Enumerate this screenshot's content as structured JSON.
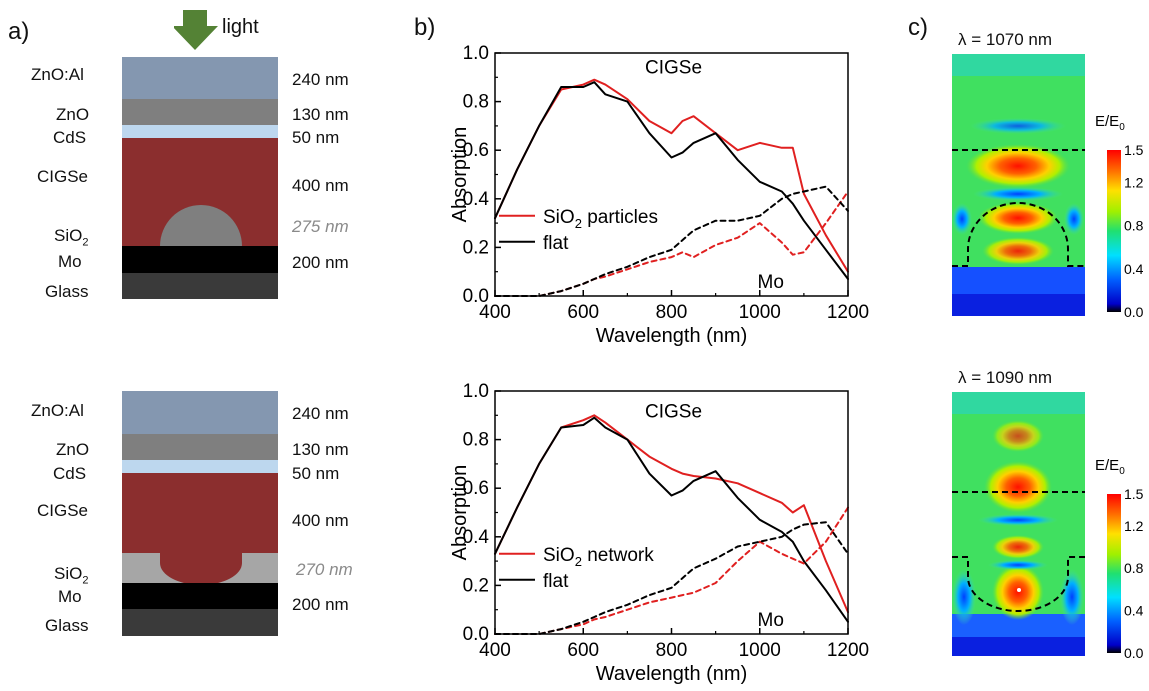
{
  "panel_labels": {
    "a": "a)",
    "b": "b)",
    "c": "c)"
  },
  "light_label": "light",
  "stack_top": {
    "layers": [
      {
        "name": "ZnO:Al",
        "thickness": "240 nm",
        "color": "#8497b0"
      },
      {
        "name": "ZnO",
        "thickness": "130 nm",
        "color": "#7f7f7f"
      },
      {
        "name": "CdS",
        "thickness": "50 nm",
        "color": "#bdd7ee"
      },
      {
        "name": "CIGSe",
        "thickness": "400 nm",
        "color": "#8b2e2e"
      },
      {
        "name": "SiO",
        "sub": "2",
        "thickness": "275 nm",
        "color": "#7f7f7f"
      },
      {
        "name": "Mo",
        "thickness": "200 nm",
        "color": "#000000"
      },
      {
        "name": "Glass",
        "thickness": "",
        "color": "#3a3a3a"
      }
    ]
  },
  "stack_bottom": {
    "layers": [
      {
        "name": "ZnO:Al",
        "thickness": "240 nm",
        "color": "#8497b0"
      },
      {
        "name": "ZnO",
        "thickness": "130 nm",
        "color": "#7f7f7f"
      },
      {
        "name": "CdS",
        "thickness": "50 nm",
        "color": "#bdd7ee"
      },
      {
        "name": "CIGSe",
        "thickness": "400 nm",
        "color": "#8b2e2e"
      },
      {
        "name": "SiO",
        "sub": "2",
        "thickness": "270 nm",
        "color": "#a6a6a6"
      },
      {
        "name": "Mo",
        "thickness": "200 nm",
        "color": "#000000"
      },
      {
        "name": "Glass",
        "thickness": "",
        "color": "#3a3a3a"
      }
    ]
  },
  "chart_data": [
    {
      "type": "line",
      "xlabel": "Wavelength (nm)",
      "ylabel": "Absorption",
      "xlim": [
        400,
        1200
      ],
      "ylim": [
        0.0,
        1.0
      ],
      "xticks": [
        "400",
        "600",
        "800",
        "1000",
        "1200"
      ],
      "yticks": [
        "0.0",
        "0.2",
        "0.4",
        "0.6",
        "0.8",
        "1.0"
      ],
      "annotations": [
        "CIGSe",
        "Mo"
      ],
      "legend": {
        "placement": "center-left",
        "entries": [
          {
            "name": "SiO",
            "sub": "2",
            "rest": " particles",
            "color": "#e02020"
          },
          {
            "name": "flat",
            "color": "#000000"
          }
        ]
      },
      "x": [
        400,
        450,
        500,
        550,
        600,
        625,
        650,
        700,
        750,
        800,
        825,
        850,
        900,
        950,
        1000,
        1050,
        1075,
        1100,
        1150,
        1200
      ],
      "series": [
        {
          "name": "SiO2 particles CIGSe",
          "color": "#e02020",
          "dash": false,
          "values": [
            0.32,
            0.52,
            0.7,
            0.85,
            0.87,
            0.89,
            0.87,
            0.81,
            0.72,
            0.67,
            0.72,
            0.74,
            0.67,
            0.6,
            0.63,
            0.61,
            0.61,
            0.42,
            0.25,
            0.1
          ]
        },
        {
          "name": "flat CIGSe",
          "color": "#000000",
          "dash": false,
          "values": [
            0.32,
            0.52,
            0.7,
            0.86,
            0.86,
            0.88,
            0.83,
            0.8,
            0.67,
            0.57,
            0.59,
            0.63,
            0.67,
            0.56,
            0.47,
            0.43,
            0.38,
            0.31,
            0.19,
            0.07
          ]
        },
        {
          "name": "SiO2 particles Mo",
          "color": "#e02020",
          "dash": true,
          "values": [
            0.0,
            0.0,
            0.0,
            0.02,
            0.05,
            0.07,
            0.08,
            0.11,
            0.14,
            0.16,
            0.18,
            0.16,
            0.21,
            0.24,
            0.3,
            0.22,
            0.17,
            0.18,
            0.3,
            0.43
          ]
        },
        {
          "name": "flat Mo",
          "color": "#000000",
          "dash": true,
          "values": [
            0.0,
            0.0,
            0.0,
            0.02,
            0.05,
            0.07,
            0.09,
            0.12,
            0.16,
            0.19,
            0.23,
            0.27,
            0.31,
            0.31,
            0.33,
            0.4,
            0.42,
            0.43,
            0.45,
            0.35
          ]
        }
      ]
    },
    {
      "type": "line",
      "xlabel": "Wavelength (nm)",
      "ylabel": "Absorption",
      "xlim": [
        400,
        1200
      ],
      "ylim": [
        0.0,
        1.0
      ],
      "xticks": [
        "400",
        "600",
        "800",
        "1000",
        "1200"
      ],
      "yticks": [
        "0.0",
        "0.2",
        "0.4",
        "0.6",
        "0.8",
        "1.0"
      ],
      "annotations": [
        "CIGSe",
        "Mo"
      ],
      "legend": {
        "placement": "center-left",
        "entries": [
          {
            "name": "SiO",
            "sub": "2",
            "rest": " network",
            "color": "#e02020"
          },
          {
            "name": "flat",
            "color": "#000000"
          }
        ]
      },
      "x": [
        400,
        450,
        500,
        550,
        600,
        625,
        650,
        700,
        750,
        800,
        825,
        850,
        900,
        950,
        1000,
        1050,
        1075,
        1100,
        1150,
        1200
      ],
      "series": [
        {
          "name": "SiO2 network CIGSe",
          "color": "#e02020",
          "dash": false,
          "values": [
            0.33,
            0.52,
            0.7,
            0.85,
            0.88,
            0.9,
            0.87,
            0.8,
            0.73,
            0.68,
            0.66,
            0.65,
            0.64,
            0.62,
            0.58,
            0.54,
            0.5,
            0.53,
            0.3,
            0.09
          ]
        },
        {
          "name": "flat CIGSe",
          "color": "#000000",
          "dash": false,
          "values": [
            0.33,
            0.52,
            0.7,
            0.85,
            0.86,
            0.89,
            0.85,
            0.8,
            0.66,
            0.57,
            0.59,
            0.63,
            0.67,
            0.56,
            0.47,
            0.42,
            0.38,
            0.3,
            0.18,
            0.05
          ]
        },
        {
          "name": "SiO2 network Mo",
          "color": "#e02020",
          "dash": true,
          "values": [
            0.0,
            0.0,
            0.0,
            0.02,
            0.04,
            0.06,
            0.07,
            0.1,
            0.13,
            0.15,
            0.16,
            0.17,
            0.21,
            0.3,
            0.38,
            0.33,
            0.31,
            0.29,
            0.38,
            0.52
          ]
        },
        {
          "name": "flat Mo",
          "color": "#000000",
          "dash": true,
          "values": [
            0.0,
            0.0,
            0.0,
            0.02,
            0.05,
            0.07,
            0.09,
            0.12,
            0.16,
            0.19,
            0.23,
            0.27,
            0.31,
            0.36,
            0.38,
            0.4,
            0.43,
            0.45,
            0.46,
            0.33
          ]
        }
      ]
    },
    {
      "type": "heatmap",
      "title": "λ = 1070 nm",
      "colorbar_label": "E/E",
      "colorbar_sub": "0",
      "colorbar_ticks": [
        "1.5",
        "1.2",
        "0.8",
        "0.4",
        "0.0"
      ],
      "colorbar_range": [
        0.0,
        1.5
      ]
    },
    {
      "type": "heatmap",
      "title": "λ = 1090 nm",
      "colorbar_label": "E/E",
      "colorbar_sub": "0",
      "colorbar_ticks": [
        "1.5",
        "1.2",
        "0.8",
        "0.4",
        "0.0"
      ],
      "colorbar_range": [
        0.0,
        1.5
      ]
    }
  ]
}
